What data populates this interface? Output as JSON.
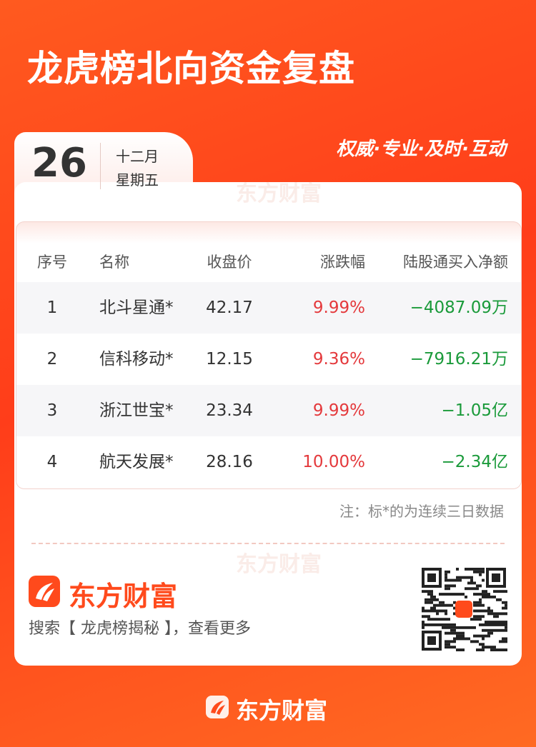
{
  "header": {
    "title": "龙虎榜北向资金复盘",
    "slogan": "权威·专业·及时·互动"
  },
  "date": {
    "day": "26",
    "month": "十二月",
    "weekday": "星期五"
  },
  "watermark": [
    "东方财富",
    "东方财富"
  ],
  "table": {
    "columns": [
      "序号",
      "名称",
      "收盘价",
      "涨跌幅",
      "陆股通买入净额"
    ],
    "rows": [
      [
        "1",
        "北斗星通*",
        "42.17",
        "9.99%",
        "−4087.09万"
      ],
      [
        "2",
        "信科移动*",
        "12.15",
        "9.36%",
        "−7916.21万"
      ],
      [
        "3",
        "浙江世宝*",
        "23.34",
        "9.99%",
        "−1.05亿"
      ],
      [
        "4",
        "航天发展*",
        "28.16",
        "10.00%",
        "−2.34亿"
      ]
    ]
  },
  "note": "注：标*的为连续三日数据",
  "brand": {
    "name": "东方财富",
    "search": "搜索【 龙虎榜揭秘 】，查看更多"
  },
  "footer": {
    "brand": "东方财富"
  }
}
